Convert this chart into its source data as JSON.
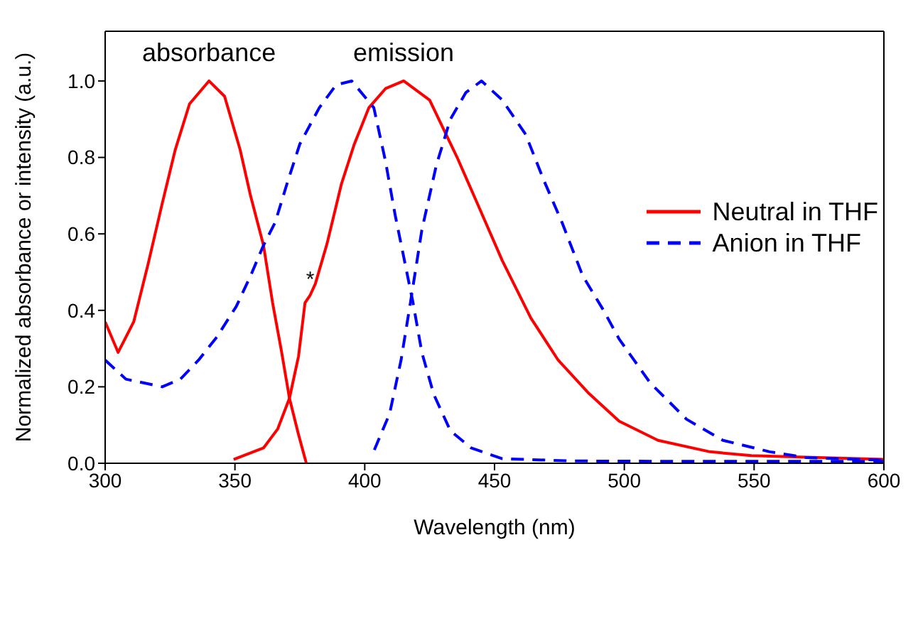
{
  "chart_data": {
    "type": "line",
    "xlabel": "Wavelength (nm)",
    "ylabel": "Normalized absorbance or intensity (a.u.)",
    "xlim": [
      300,
      600
    ],
    "xticks": [
      300,
      350,
      400,
      450,
      500,
      550,
      600
    ],
    "ylim": [
      0,
      1.13
    ],
    "yticks": [
      {
        "value": 0,
        "label": "0.0"
      },
      {
        "value": 0.2,
        "label": "0.2"
      },
      {
        "value": 0.4,
        "label": "0.4"
      },
      {
        "value": 0.6,
        "label": "0.6"
      },
      {
        "value": 0.8,
        "label": "0.8"
      },
      {
        "value": 1,
        "label": "1.0"
      }
    ],
    "legend": "right",
    "marker": "none",
    "annotations": [
      {
        "text": "absorbance",
        "x": 340,
        "y": 1.0
      },
      {
        "text": "emission",
        "x": 415,
        "y": 1.0
      },
      {
        "text": "*",
        "x": 379,
        "y": 0.44
      }
    ],
    "series": [
      {
        "name": "Neutral in THF",
        "color": "#ff0000",
        "line_style": "solid",
        "x": [
          300,
          305,
          311,
          316.5,
          322,
          327,
          332.5,
          340,
          346,
          352,
          356,
          361,
          364.5,
          368,
          371,
          374.5,
          377.5
        ],
        "values": [
          0.37,
          0.29,
          0.37,
          0.52,
          0.68,
          0.82,
          0.94,
          1.0,
          0.96,
          0.82,
          0.7,
          0.57,
          0.42,
          0.29,
          0.17,
          0.075,
          0.0
        ]
      },
      {
        "color": "#ff0000",
        "line_style": "solid",
        "x": [
          349.5,
          361,
          366.5,
          371,
          374.5,
          377,
          379,
          381,
          385.5,
          391,
          396,
          401.6,
          408,
          415,
          425,
          435.6,
          444,
          453,
          464,
          474.5,
          486,
          498,
          513,
          533,
          549,
          575,
          600
        ],
        "values": [
          0.01,
          0.04,
          0.09,
          0.17,
          0.28,
          0.42,
          0.44,
          0.47,
          0.575,
          0.73,
          0.835,
          0.93,
          0.98,
          1.0,
          0.95,
          0.8,
          0.67,
          0.53,
          0.38,
          0.27,
          0.185,
          0.11,
          0.06,
          0.03,
          0.02,
          0.015,
          0.01
        ]
      },
      {
        "name": "Anion in THF",
        "color": "#0000ff",
        "line_style": "dashed",
        "x": [
          300,
          308,
          322,
          329,
          336,
          343,
          350.5,
          356,
          361,
          365.5,
          370,
          375,
          382.5,
          389,
          395,
          403.5,
          408,
          411.7,
          415,
          418.6,
          422,
          426.6,
          433,
          441,
          453,
          480,
          520,
          560,
          600
        ],
        "values": [
          0.27,
          0.22,
          0.2,
          0.22,
          0.27,
          0.33,
          0.41,
          0.49,
          0.57,
          0.63,
          0.73,
          0.835,
          0.93,
          0.99,
          1.0,
          0.93,
          0.79,
          0.65,
          0.54,
          0.42,
          0.29,
          0.18,
          0.085,
          0.04,
          0.012,
          0.006,
          0.005,
          0.005,
          0.005
        ]
      },
      {
        "color": "#0000ff",
        "line_style": "dashed",
        "x": [
          403.7,
          409.6,
          414,
          417.6,
          422,
          427.6,
          433,
          439,
          445,
          453,
          462,
          469,
          476,
          484,
          492,
          498,
          510,
          524,
          538,
          556,
          570,
          600
        ],
        "values": [
          0.035,
          0.13,
          0.27,
          0.42,
          0.61,
          0.78,
          0.9,
          0.97,
          1.0,
          0.95,
          0.86,
          0.74,
          0.63,
          0.49,
          0.4,
          0.325,
          0.21,
          0.115,
          0.06,
          0.03,
          0.015,
          0.008
        ]
      }
    ]
  }
}
